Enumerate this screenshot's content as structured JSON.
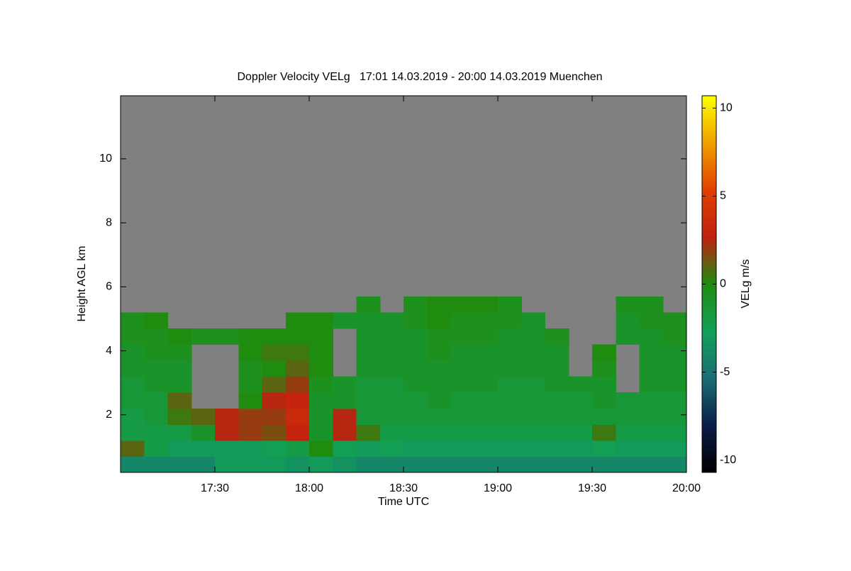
{
  "chart_data": {
    "type": "heatmap",
    "title": "Doppler Velocity VELg   17:01 14.03.2019 - 20:00 14.03.2019 Muenchen",
    "x_label": "Time UTC",
    "y_label": "Height AGL km",
    "colorbar_label": "VELg m/s",
    "x": [
      17,
      17.125,
      17.25,
      17.375,
      17.5,
      17.625,
      17.75,
      17.875,
      18,
      18.125,
      18.25,
      18.375,
      18.5,
      18.625,
      18.75,
      18.875,
      19,
      19.125,
      19.25,
      19.375,
      19.5,
      19.625,
      19.75,
      19.875,
      20
    ],
    "y": [
      0.2,
      0.7,
      1.2,
      1.7,
      2.2,
      2.7,
      3.2,
      3.7,
      4.2,
      4.7,
      5.2,
      5.7,
      6.2
    ],
    "z": [
      [
        -4,
        1,
        -2,
        -2,
        -1.5,
        -1.5,
        -1,
        -1,
        -0.5,
        -0.5,
        null,
        null
      ],
      [
        -4,
        -2,
        -2,
        -1.5,
        -1.5,
        -1,
        -1,
        -0.5,
        -0.5,
        0,
        null,
        null
      ],
      [
        -4,
        -3,
        -2,
        0.5,
        1,
        -1,
        -1,
        -0.5,
        0,
        null,
        null,
        null
      ],
      [
        -4,
        -3,
        -1,
        1,
        null,
        null,
        null,
        null,
        -0.5,
        null,
        null,
        null
      ],
      [
        -3,
        -3,
        2.5,
        2.5,
        null,
        null,
        null,
        null,
        -0.5,
        null,
        null,
        null
      ],
      [
        -3,
        -3,
        2,
        2,
        0,
        -0.5,
        -0.5,
        0,
        0,
        null,
        null,
        null
      ],
      [
        -3,
        -2.5,
        1.5,
        2,
        2.5,
        1,
        0,
        0.5,
        0,
        null,
        null,
        null
      ],
      [
        -3.5,
        -2,
        3,
        3.5,
        3,
        2,
        1,
        0.5,
        0,
        0,
        null,
        null
      ],
      [
        -3,
        0,
        -1,
        -1,
        -1,
        -0.5,
        0,
        0,
        0,
        0,
        null,
        null
      ],
      [
        -3.5,
        -2.5,
        2.5,
        2.5,
        -1,
        -1,
        null,
        null,
        null,
        -1,
        null,
        null
      ],
      [
        -4,
        -3,
        0.5,
        -1.5,
        -1.5,
        -1.5,
        -1,
        -1,
        -1,
        -1,
        -0.5,
        null
      ],
      [
        -4,
        -2.5,
        -2,
        -1.5,
        -1.5,
        -1.5,
        -1,
        -1,
        -1,
        -1,
        null,
        null
      ],
      [
        -4,
        -3,
        -2,
        -1.5,
        -1.5,
        -1,
        -1,
        -1,
        -1,
        -0.5,
        -0.5,
        null
      ],
      [
        -4,
        -3,
        -2,
        -1.5,
        -1,
        -1,
        -1,
        -0.5,
        -0.5,
        0,
        0,
        null
      ],
      [
        -4,
        -3,
        -2,
        -1.5,
        -1.5,
        -1,
        -1,
        -1,
        -0.5,
        -0.5,
        0,
        null
      ],
      [
        -4,
        -3,
        -2,
        -1.5,
        -1.5,
        -1,
        -1,
        -1,
        -0.5,
        -0.5,
        0,
        null
      ],
      [
        -4,
        -3,
        -2,
        -1.5,
        -1.5,
        -1.5,
        -1,
        -1,
        -1,
        -0.5,
        -0.5,
        null
      ],
      [
        -4,
        -3,
        -2,
        -1.5,
        -1.5,
        -1.5,
        -1,
        -1,
        -1,
        -1,
        null,
        null
      ],
      [
        -4,
        -3,
        -2,
        -1.5,
        -1.5,
        -1,
        -1,
        -1,
        -0.5,
        null,
        null,
        null
      ],
      [
        -4,
        -3,
        -2,
        -1.5,
        -1.5,
        -1,
        null,
        null,
        null,
        null,
        null,
        null
      ],
      [
        -4,
        -2.5,
        0.5,
        -1.5,
        -1,
        -1,
        -0.5,
        0,
        null,
        null,
        null,
        null
      ],
      [
        -4,
        -3,
        -2,
        -1.5,
        -1.5,
        null,
        null,
        null,
        -1,
        -1,
        -0.5,
        null
      ],
      [
        -4,
        -3,
        -2,
        -1.5,
        -1.5,
        -1,
        -1,
        -1,
        -1,
        -0.5,
        -0.5,
        null
      ],
      [
        -4,
        -3,
        -2,
        -1.5,
        -1.5,
        -1,
        -1,
        -1,
        -0.5,
        -0.5,
        null,
        null
      ]
    ],
    "xlim": [
      17,
      20
    ],
    "xticks": [
      {
        "value": 17.5,
        "label": "17:30"
      },
      {
        "value": 18,
        "label": "18:00"
      },
      {
        "value": 18.5,
        "label": "18:30"
      },
      {
        "value": 19,
        "label": "19:00"
      },
      {
        "value": 19.5,
        "label": "19:30"
      },
      {
        "value": 20,
        "label": "20:00"
      }
    ],
    "ylim": [
      0.2,
      11.97
    ],
    "yticks": [
      2,
      4,
      6,
      8,
      10
    ],
    "zlim": [
      -10.7,
      10.7
    ],
    "zticks": [
      10,
      5,
      0,
      -5,
      -10
    ],
    "colorscale": [
      "#000000",
      "#0b1c48",
      "#1a6e74",
      "#12a058",
      "#1f8c10",
      "#c02010",
      "#e24000",
      "#f0a000",
      "#ffff00"
    ],
    "nodata_color": "#808080"
  }
}
